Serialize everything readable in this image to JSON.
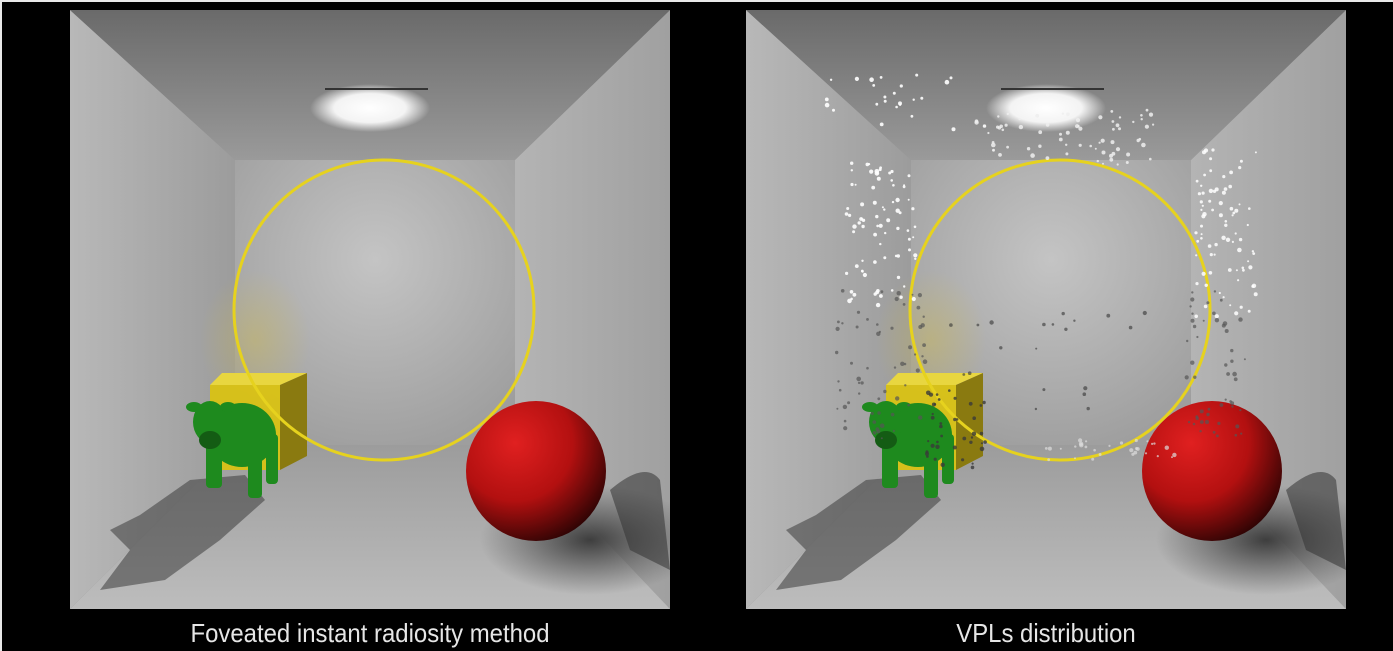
{
  "panels": [
    {
      "id": "left",
      "caption": "Foveated instant radiosity method",
      "show_vpls": false
    },
    {
      "id": "right",
      "caption": "VPLs distribution",
      "show_vpls": true
    }
  ],
  "colors": {
    "background": "#000000",
    "fovea_circle": "#e6d21e",
    "sphere": "#b31010",
    "cube": "#d9c214",
    "cow": "#1e8a1e",
    "caption_text": "#e6e6e6"
  }
}
